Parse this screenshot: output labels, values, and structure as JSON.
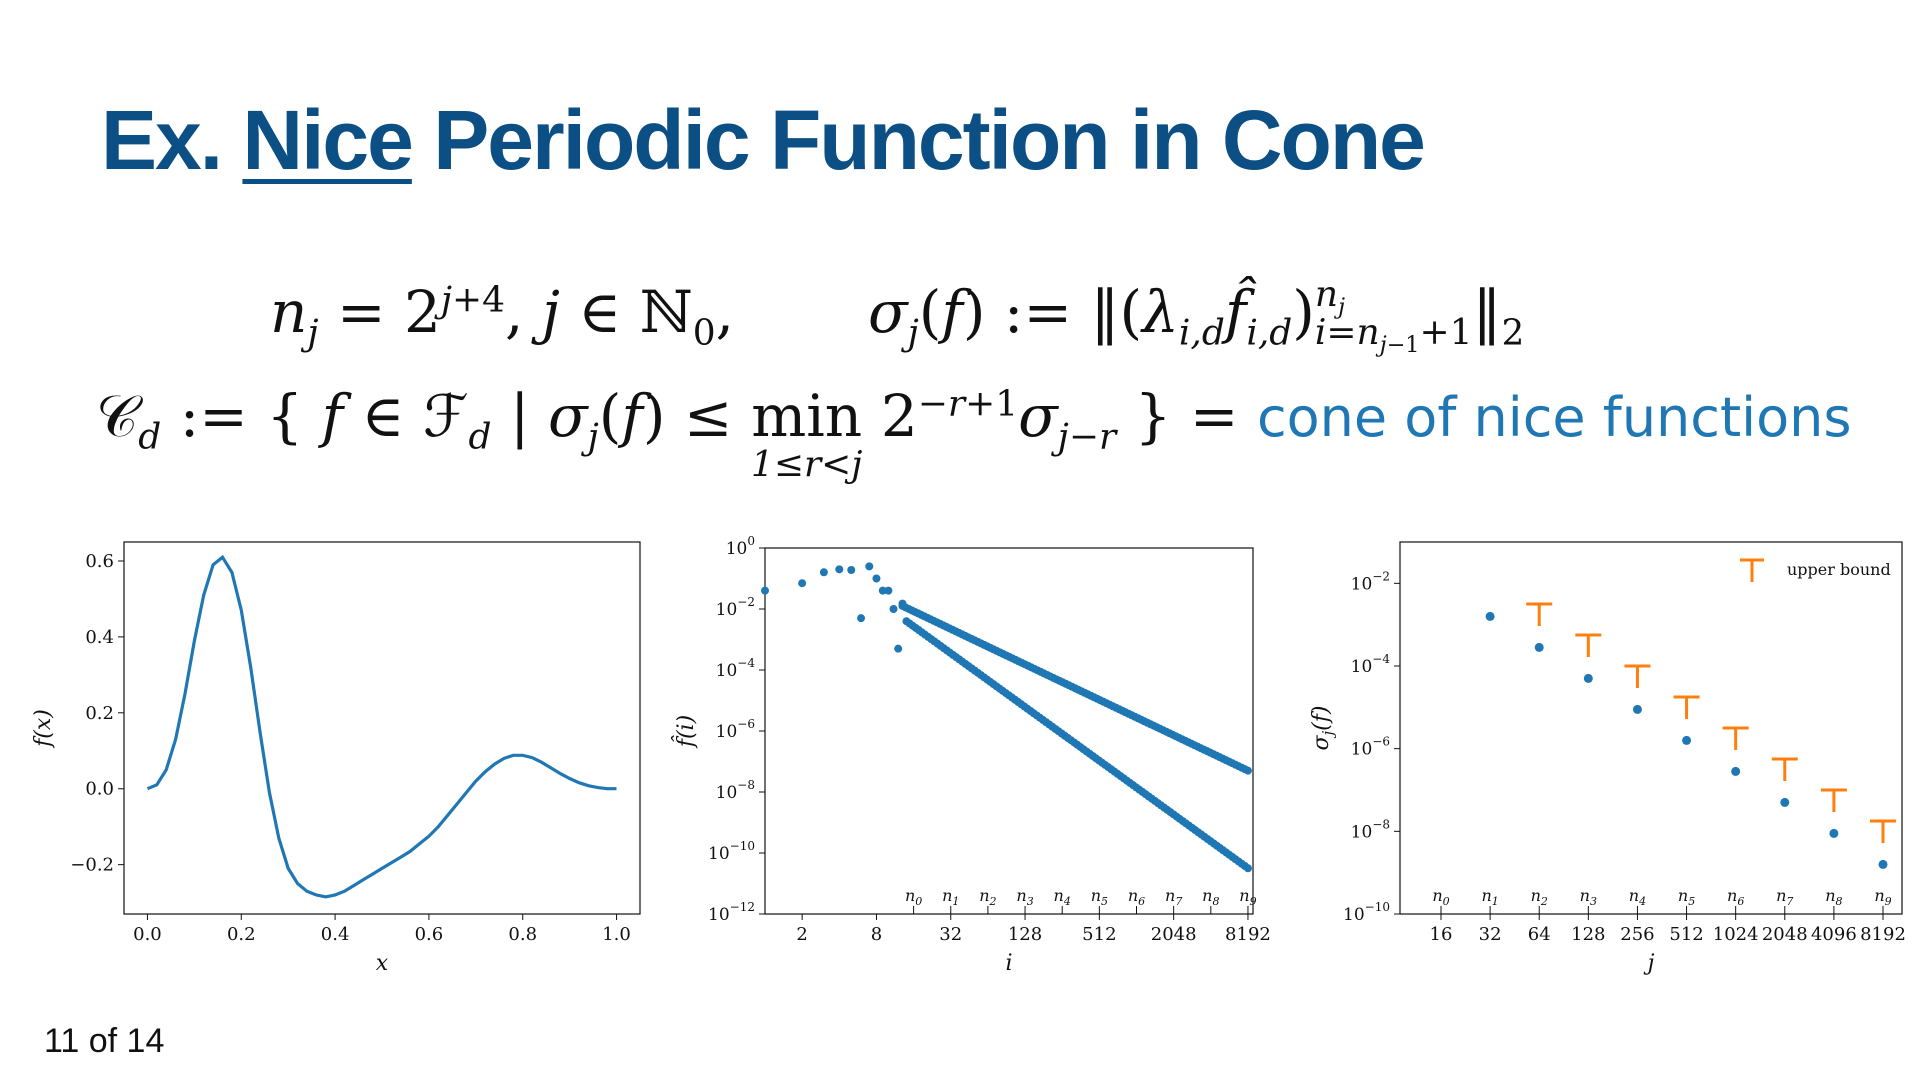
{
  "slide": {
    "title_prefix": "Ex. ",
    "title_nice": "Nice",
    "title_rest": " Periodic Function in Cone",
    "page_number": "11 of 14"
  },
  "equations": {
    "nj_def": "n_j = 2^{j+4}, j ∈ ℕ_0,",
    "sigma_def": "σ_j(f) := ‖(λ_{i,d} f̂_{i,d})_{i=n_{j−1}+1}^{n_j}‖_2",
    "cone_def": "𝒞_d := { f ∈ ℱ_d | σ_j(f) ≤ min_{1≤r<j} 2^{−r+1} σ_{j−r} } =",
    "cone_label": "cone of nice functions"
  },
  "colors": {
    "title": "#0b4f84",
    "series_blue": "#1f77b4",
    "bound_orange": "#ff7f0e"
  },
  "chart_data": [
    {
      "type": "line",
      "xlabel": "x",
      "ylabel": "f(x)",
      "xlim": [
        -0.05,
        1.05
      ],
      "ylim": [
        -0.33,
        0.65
      ],
      "xticks": [
        0.0,
        0.2,
        0.4,
        0.6,
        0.8,
        1.0
      ],
      "xtick_labels": [
        "0.0",
        "0.2",
        "0.4",
        "0.6",
        "0.8",
        "1.0"
      ],
      "yticks": [
        -0.2,
        0.0,
        0.2,
        0.4,
        0.6
      ],
      "ytick_labels": [
        "−0.2",
        "0.0",
        "0.2",
        "0.4",
        "0.6"
      ],
      "x": [
        0.0,
        0.02,
        0.04,
        0.06,
        0.08,
        0.1,
        0.12,
        0.14,
        0.16,
        0.18,
        0.2,
        0.22,
        0.24,
        0.26,
        0.28,
        0.3,
        0.32,
        0.34,
        0.36,
        0.38,
        0.4,
        0.42,
        0.44,
        0.46,
        0.48,
        0.5,
        0.52,
        0.54,
        0.56,
        0.58,
        0.6,
        0.62,
        0.64,
        0.66,
        0.68,
        0.7,
        0.72,
        0.74,
        0.76,
        0.78,
        0.8,
        0.82,
        0.84,
        0.86,
        0.88,
        0.9,
        0.92,
        0.94,
        0.96,
        0.98,
        1.0
      ],
      "y": [
        0.0,
        0.01,
        0.05,
        0.13,
        0.25,
        0.39,
        0.51,
        0.59,
        0.61,
        0.57,
        0.47,
        0.32,
        0.15,
        -0.01,
        -0.13,
        -0.21,
        -0.25,
        -0.27,
        -0.28,
        -0.285,
        -0.28,
        -0.27,
        -0.255,
        -0.24,
        -0.225,
        -0.21,
        -0.195,
        -0.18,
        -0.165,
        -0.145,
        -0.125,
        -0.1,
        -0.07,
        -0.04,
        -0.01,
        0.02,
        0.045,
        0.065,
        0.08,
        0.088,
        0.088,
        0.082,
        0.07,
        0.055,
        0.04,
        0.027,
        0.016,
        0.008,
        0.003,
        0.0,
        0.0
      ],
      "grid": false
    },
    {
      "type": "scatter",
      "xlabel": "i",
      "ylabel": "f̂(i)",
      "xscale": "log2",
      "yscale": "log10",
      "xlim": [
        1,
        9000
      ],
      "ylim": [
        1e-12,
        1
      ],
      "xticks": [
        2,
        8,
        32,
        128,
        512,
        2048,
        8192
      ],
      "xtick_labels": [
        "2",
        "8",
        "32",
        "128",
        "512",
        "2048",
        "8192"
      ],
      "yticks": [
        0,
        -2,
        -4,
        -6,
        -8,
        -10,
        -12
      ],
      "ytick_labels": [
        "10^0",
        "10^−2",
        "10^−4",
        "10^−6",
        "10^−8",
        "10^−10",
        "10^−12"
      ],
      "n_markers": [
        16,
        32,
        64,
        128,
        256,
        512,
        1024,
        2048,
        4096,
        8192
      ],
      "n_labels": [
        "n0",
        "n1",
        "n2",
        "n3",
        "n4",
        "n5",
        "n6",
        "n7",
        "n8",
        "n9"
      ],
      "points": [
        [
          1,
          0.04
        ],
        [
          2,
          0.07
        ],
        [
          3,
          0.16
        ],
        [
          4,
          0.2
        ],
        [
          5,
          0.19
        ],
        [
          6,
          0.005
        ],
        [
          7,
          0.25
        ],
        [
          8,
          0.1
        ],
        [
          9,
          0.04
        ],
        [
          10,
          0.04
        ],
        [
          11,
          0.01
        ],
        [
          12,
          0.0005
        ],
        [
          13,
          0.015
        ]
      ],
      "upper_branch": {
        "i_start": 13,
        "log10_start": -1.9,
        "i_end": 8192,
        "log10_end": -7.3
      },
      "lower_branch": {
        "i_start": 14,
        "log10_start": -2.4,
        "i_end": 8192,
        "log10_end": -10.5
      },
      "grid": false
    },
    {
      "type": "scatter",
      "xlabel": "j",
      "ylabel": "σj(f)",
      "yscale": "log10",
      "ylim": [
        1e-10,
        0.1
      ],
      "categories": [
        "16",
        "32",
        "64",
        "128",
        "256",
        "512",
        "1024",
        "2048",
        "4096",
        "8192"
      ],
      "n_labels": [
        "n0",
        "n1",
        "n2",
        "n3",
        "n4",
        "n5",
        "n6",
        "n7",
        "n8",
        "n9"
      ],
      "yticks": [
        -2,
        -4,
        -6,
        -8,
        -10
      ],
      "ytick_labels": [
        "10^−2",
        "10^−4",
        "10^−6",
        "10^−8",
        "10^−10"
      ],
      "sigma_log10": [
        null,
        -2.8,
        -3.55,
        -4.3,
        -5.05,
        -5.8,
        -6.55,
        -7.3,
        -8.05,
        -8.8
      ],
      "upper_bound_log10": [
        null,
        null,
        -2.5,
        -3.25,
        -4.0,
        -4.75,
        -5.5,
        -6.25,
        -7.0,
        -7.75
      ],
      "legend": {
        "label": "upper bound",
        "position": "top-right"
      },
      "grid": false
    }
  ]
}
